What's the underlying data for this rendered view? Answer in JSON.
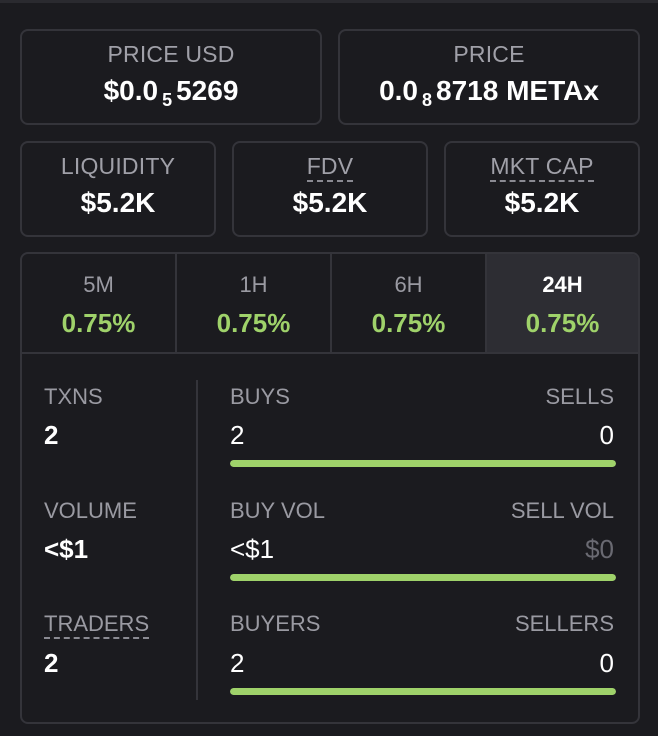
{
  "price_usd": {
    "label": "PRICE USD",
    "prefix": "$0.0",
    "subscript": "5",
    "suffix": "5269"
  },
  "price": {
    "label": "PRICE",
    "prefix": "0.0",
    "subscript": "8",
    "suffix": "8718 METAx"
  },
  "liquidity": {
    "label": "LIQUIDITY",
    "value": "$5.2K"
  },
  "fdv": {
    "label": "FDV",
    "value": "$5.2K"
  },
  "mkt_cap": {
    "label": "MKT CAP",
    "value": "$5.2K"
  },
  "tabs": [
    {
      "label": "5M",
      "value": "0.75%"
    },
    {
      "label": "1H",
      "value": "0.75%"
    },
    {
      "label": "6H",
      "value": "0.75%"
    },
    {
      "label": "24H",
      "value": "0.75%"
    }
  ],
  "active_tab": "24H",
  "txns": {
    "label": "TXNS",
    "value": "2"
  },
  "volume": {
    "label": "VOLUME",
    "value": "<$1"
  },
  "traders": {
    "label": "TRADERS",
    "value": "2"
  },
  "buys_sells": {
    "left_label": "BUYS",
    "right_label": "SELLS",
    "left_value": "2",
    "right_value": "0",
    "buy_fraction": 1.0
  },
  "vol": {
    "left_label": "BUY VOL",
    "right_label": "SELL VOL",
    "left_value": "<$1",
    "right_value": "$0",
    "buy_fraction": 1.0
  },
  "buyers_sellers": {
    "left_label": "BUYERS",
    "right_label": "SELLERS",
    "left_value": "2",
    "right_value": "0",
    "buy_fraction": 1.0
  },
  "colors": {
    "accent_green": "#9fd26a",
    "background": "#1b1b1f",
    "border": "#34343a"
  }
}
